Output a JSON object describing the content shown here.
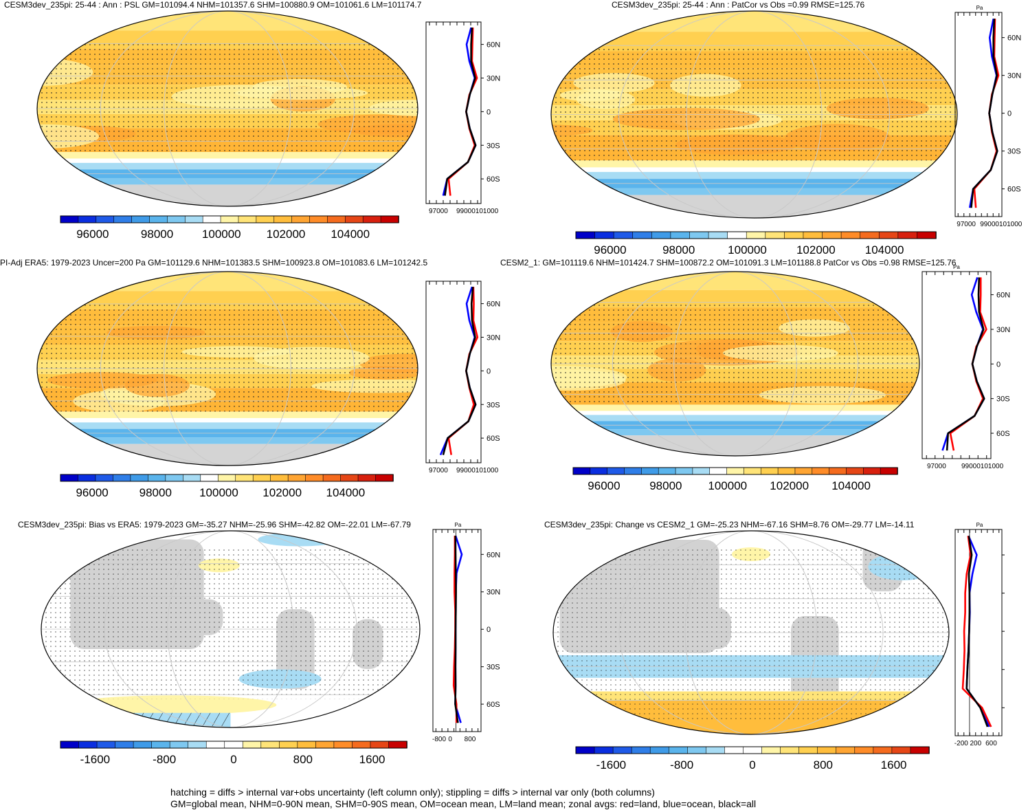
{
  "panels": [
    {
      "id": "p1",
      "title": "CESM3dev_235pi: 25-44 : Ann : PSL GM=101094.4 NHM=101357.6 SHM=100880.9 OM=101061.6 LM=101174.7",
      "kind": "abs",
      "unit": "",
      "lat_labels": [
        "60N",
        "30N",
        "0",
        "30S",
        "60S"
      ],
      "zonal_ticks": [
        "97000",
        "99000101000"
      ],
      "colorbar_labels": [
        "96000",
        "98000",
        "100000",
        "102000",
        "104000"
      ]
    },
    {
      "id": "p2",
      "title": "CESM3dev_235pi: 25-44 : Ann : PatCor vs Obs =0.99 RMSE=125.76",
      "kind": "abs",
      "unit": "Pa",
      "lat_labels": [
        "60N",
        "30N",
        "0",
        "30S",
        "60S"
      ],
      "zonal_ticks": [
        "97000",
        "99000101000"
      ],
      "colorbar_labels": [
        "96000",
        "98000",
        "100000",
        "102000",
        "104000"
      ]
    },
    {
      "id": "p3",
      "title": "PI-Adj ERA5: 1979-2023 Uncer=200 Pa GM=101129.6 NHM=101383.5 SHM=100923.8 OM=101083.6 LM=101242.5",
      "kind": "abs",
      "unit": "",
      "lat_labels": [
        "60N",
        "30N",
        "0",
        "30S",
        "60S"
      ],
      "zonal_ticks": [
        "97000",
        "99000101000"
      ],
      "colorbar_labels": [
        "96000",
        "98000",
        "100000",
        "102000",
        "104000"
      ]
    },
    {
      "id": "p4",
      "title": "CESM2_1: GM=101119.6 NHM=101424.7 SHM=100872.2 OM=101091.3 LM=101188.8 PatCor vs Obs =0.98 RMSE=125.76",
      "kind": "abs",
      "unit": "Pa",
      "lat_labels": [
        "60N",
        "30N",
        "0",
        "30S",
        "60S"
      ],
      "zonal_ticks": [
        "97000",
        "99000101000"
      ],
      "colorbar_labels": [
        "96000",
        "98000",
        "100000",
        "102000",
        "104000"
      ]
    },
    {
      "id": "p5",
      "title": "CESM3dev_235pi: Bias vs ERA5: 1979-2023 GM=-35.27 NHM=-25.96 SHM=-42.82 OM=-22.01 LM=-67.79",
      "kind": "diff",
      "unit": "Pa",
      "lat_labels": [
        "60N",
        "30N",
        "0",
        "30S",
        "60S"
      ],
      "zonal_ticks": [
        "-800",
        "0",
        "800"
      ],
      "colorbar_labels": [
        "-1600",
        "-800",
        "0",
        "800",
        "1600"
      ]
    },
    {
      "id": "p6",
      "title": "CESM3dev_235pi: Change vs CESM2_1 GM=-25.23 NHM=-67.16 SHM=8.76 OM=-29.77 LM=-14.11",
      "kind": "change",
      "unit": "Pa",
      "lat_labels": [],
      "zonal_ticks": [
        "-200",
        "200",
        "600"
      ],
      "colorbar_labels": [
        "-1600",
        "-800",
        "0",
        "800",
        "1600"
      ]
    }
  ],
  "footer": {
    "line1": "hatching = diffs > internal var+obs uncertainty (left column only); stippling = diffs > internal var only (both columns)",
    "line2": "GM=global mean, NHM=0-90N mean, SHM=0-90S mean, OM=ocean mean, LM=land mean; zonal avgs: red=land, blue=ocean, black=all"
  },
  "colors": {
    "abs_scale": [
      "#0000c8",
      "#0a2ee0",
      "#1f5ae8",
      "#2f7ee8",
      "#3f9be8",
      "#5ab4ec",
      "#7ec8f0",
      "#a8dcf4",
      "#ffffff",
      "#fff5a8",
      "#ffe478",
      "#ffd050",
      "#ffbd3c",
      "#ffa533",
      "#ff8c28",
      "#f56b1e",
      "#e64616",
      "#d8200e",
      "#c80000"
    ],
    "diff_scale": [
      "#0000c8",
      "#0a2ee0",
      "#1f5ae8",
      "#2f7ee8",
      "#3f9be8",
      "#5ab4ec",
      "#7ec8f0",
      "#a8dcf4",
      "#ffffff",
      "#ffffff",
      "#fff5a8",
      "#ffe478",
      "#ffd050",
      "#ffbd3c",
      "#ffa533",
      "#ff8c28",
      "#f56b1e",
      "#e64616",
      "#c80000"
    ],
    "land_line": "red",
    "ocean_line": "blue",
    "all_line": "black"
  },
  "chart_data": {
    "type": "map",
    "variable": "PSL",
    "latitudes": [
      75,
      60,
      45,
      30,
      15,
      0,
      -15,
      -30,
      -45,
      -60,
      -75
    ],
    "zonal_means": {
      "CESM3dev_235pi": {
        "all": [
          101600,
          101500,
          101500,
          101950,
          101350,
          100950,
          101350,
          102000,
          101150,
          98850,
          98600
        ],
        "land": [
          101700,
          101650,
          101600,
          102150,
          101300,
          100950,
          101300,
          101900,
          101150,
          99000,
          99200
        ],
        "ocean": [
          101500,
          101000,
          101300,
          101900,
          101350,
          100950,
          101350,
          102000,
          101150,
          98850,
          98400
        ]
      },
      "PI-Adj ERA5": {
        "all": [
          101700,
          101550,
          101600,
          101950,
          101350,
          100950,
          101350,
          102000,
          101200,
          98900,
          98400
        ],
        "land": [
          101750,
          101800,
          101750,
          102200,
          101300,
          100950,
          101300,
          101800,
          101200,
          99000,
          99300
        ],
        "ocean": [
          101600,
          101000,
          101300,
          101900,
          101350,
          100950,
          101350,
          102000,
          101200,
          98900,
          98100
        ]
      },
      "CESM2_1": {
        "all": [
          101550,
          101500,
          101550,
          101950,
          101350,
          100950,
          101350,
          102000,
          101150,
          98800,
          98700
        ],
        "land": [
          101700,
          101700,
          101650,
          102200,
          101300,
          100950,
          101300,
          101900,
          101150,
          99000,
          99300
        ],
        "ocean": [
          101400,
          100900,
          101300,
          101900,
          101350,
          100950,
          101350,
          102000,
          101150,
          98800,
          98300
        ]
      },
      "Bias vs ERA5": {
        "all": [
          -30,
          -20,
          -10,
          0,
          -10,
          -20,
          -20,
          -30,
          -20,
          -40,
          100
        ],
        "land": [
          -60,
          -60,
          -80,
          -80,
          -40,
          -40,
          -60,
          -100,
          -120,
          20,
          20
        ],
        "ocean": [
          -20,
          300,
          30,
          -10,
          -10,
          -20,
          -20,
          -30,
          -20,
          -40,
          250
        ]
      },
      "Change vs CESM2_1": {
        "all": [
          -20,
          60,
          -20,
          0,
          0,
          -10,
          -30,
          -60,
          -80,
          300,
          500
        ],
        "land": [
          -40,
          30,
          -80,
          -120,
          -120,
          -150,
          -140,
          -160,
          -190,
          350,
          600
        ],
        "ocean": [
          -30,
          200,
          80,
          0,
          10,
          -10,
          -30,
          -60,
          -80,
          300,
          550
        ]
      }
    },
    "abs_colorbar": {
      "min": 95000,
      "max": 105500,
      "labels": [
        96000,
        98000,
        100000,
        102000,
        104000
      ]
    },
    "diff_colorbar": {
      "min": -2000,
      "max": 2000,
      "labels": [
        -1600,
        -800,
        0,
        800,
        1600
      ]
    }
  }
}
